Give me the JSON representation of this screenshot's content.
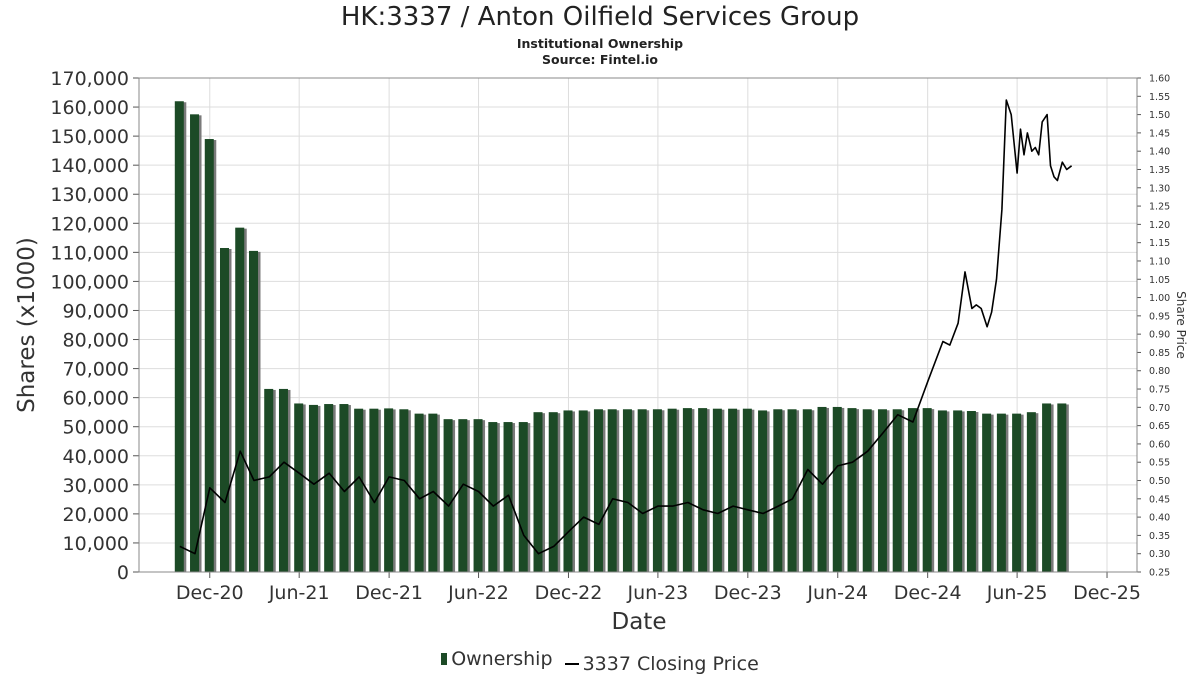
{
  "title": "HK:3337 / Anton Oilfield Services Group",
  "subtitle": "Institutional Ownership",
  "source": "Source: Fintel.io",
  "chart_data": {
    "type": "bar",
    "xlabel": "Date",
    "ylabel": "Shares (x1000)",
    "y2label": "Share Price",
    "ylim": [
      0,
      170000
    ],
    "y2lim": [
      0.25,
      1.6
    ],
    "grid": true,
    "legend": "bottom",
    "x_ticks": [
      "Dec-20",
      "Jun-21",
      "Dec-21",
      "Jun-22",
      "Dec-22",
      "Jun-23",
      "Dec-23",
      "Jun-24",
      "Dec-24",
      "Jun-25",
      "Dec-25"
    ],
    "y_ticks": [
      "0",
      "10,000",
      "20,000",
      "30,000",
      "40,000",
      "50,000",
      "60,000",
      "70,000",
      "80,000",
      "90,000",
      "100,000",
      "110,000",
      "120,000",
      "130,000",
      "140,000",
      "150,000",
      "160,000",
      "170,000"
    ],
    "y2_ticks": [
      "0.25",
      "0.30",
      "0.35",
      "0.40",
      "0.45",
      "0.50",
      "0.55",
      "0.60",
      "0.65",
      "0.70",
      "0.75",
      "0.80",
      "0.85",
      "0.90",
      "0.95",
      "1.00",
      "1.05",
      "1.10",
      "1.15",
      "1.20",
      "1.25",
      "1.30",
      "1.35",
      "1.40",
      "1.45",
      "1.50",
      "1.55",
      "1.60"
    ],
    "colors": {
      "bar": "#1c4a26",
      "bar_shadow": "#7a7a7a",
      "price_line": "#000000",
      "grid": "#dddddd"
    },
    "series": [
      {
        "name": "Ownership",
        "type": "bar",
        "x": [
          "2020-09-30",
          "2020-10-31",
          "2020-11-30",
          "2020-12-31",
          "2021-01-31",
          "2021-02-28",
          "2021-03-31",
          "2021-04-30",
          "2021-05-31",
          "2021-06-30",
          "2021-07-31",
          "2021-08-31",
          "2021-09-30",
          "2021-10-31",
          "2021-11-30",
          "2021-12-31",
          "2022-01-31",
          "2022-02-28",
          "2022-03-31",
          "2022-04-30",
          "2022-05-31",
          "2022-06-30",
          "2022-07-31",
          "2022-08-31",
          "2022-09-30",
          "2022-10-31",
          "2022-11-30",
          "2022-12-31",
          "2023-01-31",
          "2023-02-28",
          "2023-03-31",
          "2023-04-30",
          "2023-05-31",
          "2023-06-30",
          "2023-07-31",
          "2023-08-31",
          "2023-09-30",
          "2023-10-31",
          "2023-11-30",
          "2023-12-31",
          "2024-01-31",
          "2024-02-29",
          "2024-03-31",
          "2024-04-30",
          "2024-05-31",
          "2024-06-30",
          "2024-07-31",
          "2024-08-31",
          "2024-09-30",
          "2024-10-31",
          "2024-11-30",
          "2024-12-31",
          "2025-01-31",
          "2025-02-28",
          "2025-03-31",
          "2025-04-30",
          "2025-05-31",
          "2025-06-30",
          "2025-07-31",
          "2025-08-31"
        ],
        "values": [
          162000,
          157500,
          149000,
          111500,
          118500,
          110500,
          63000,
          63000,
          58000,
          57500,
          57800,
          57800,
          56200,
          56200,
          56300,
          56000,
          54500,
          54500,
          52600,
          52600,
          52600,
          51600,
          51600,
          51600,
          55000,
          55000,
          55600,
          55600,
          56000,
          56000,
          56000,
          56000,
          56000,
          56200,
          56400,
          56400,
          56200,
          56200,
          56200,
          55600,
          56000,
          56000,
          56000,
          56800,
          56800,
          56400,
          56000,
          56000,
          56000,
          56400,
          56400,
          55600,
          55600,
          55400,
          54500,
          54500,
          54500,
          55000,
          58000,
          58000
        ]
      },
      {
        "name": "3337 Closing Price",
        "type": "line",
        "x": [
          "2020-10-01",
          "2020-11-01",
          "2020-12-01",
          "2021-01-01",
          "2021-02-01",
          "2021-03-01",
          "2021-04-01",
          "2021-05-01",
          "2021-06-01",
          "2021-07-01",
          "2021-08-01",
          "2021-09-01",
          "2021-10-01",
          "2021-11-01",
          "2021-12-01",
          "2022-01-01",
          "2022-02-01",
          "2022-03-01",
          "2022-04-01",
          "2022-05-01",
          "2022-06-01",
          "2022-07-01",
          "2022-08-01",
          "2022-09-01",
          "2022-10-01",
          "2022-11-01",
          "2022-12-01",
          "2023-01-01",
          "2023-02-01",
          "2023-03-01",
          "2023-04-01",
          "2023-05-01",
          "2023-06-01",
          "2023-07-01",
          "2023-08-01",
          "2023-09-01",
          "2023-10-01",
          "2023-11-01",
          "2023-12-01",
          "2024-01-01",
          "2024-02-01",
          "2024-03-01",
          "2024-04-01",
          "2024-05-01",
          "2024-06-01",
          "2024-07-01",
          "2024-08-01",
          "2024-09-01",
          "2024-10-01",
          "2024-11-01",
          "2024-12-01",
          "2025-01-01",
          "2025-01-15",
          "2025-02-01",
          "2025-02-15",
          "2025-03-01",
          "2025-03-10",
          "2025-03-20",
          "2025-04-01",
          "2025-04-10",
          "2025-04-20",
          "2025-05-01",
          "2025-05-10",
          "2025-05-20",
          "2025-06-01",
          "2025-06-08",
          "2025-06-15",
          "2025-06-22",
          "2025-07-01",
          "2025-07-08",
          "2025-07-15",
          "2025-07-22",
          "2025-08-01",
          "2025-08-08",
          "2025-08-15",
          "2025-08-22",
          "2025-09-01",
          "2025-09-10",
          "2025-09-20"
        ],
        "values": [
          0.32,
          0.3,
          0.48,
          0.44,
          0.58,
          0.5,
          0.51,
          0.55,
          0.52,
          0.49,
          0.52,
          0.47,
          0.51,
          0.44,
          0.51,
          0.5,
          0.45,
          0.47,
          0.43,
          0.49,
          0.47,
          0.43,
          0.46,
          0.35,
          0.3,
          0.32,
          0.36,
          0.4,
          0.38,
          0.45,
          0.44,
          0.41,
          0.43,
          0.43,
          0.44,
          0.42,
          0.41,
          0.43,
          0.42,
          0.41,
          0.43,
          0.45,
          0.53,
          0.49,
          0.54,
          0.55,
          0.58,
          0.63,
          0.68,
          0.66,
          0.77,
          0.88,
          0.87,
          0.93,
          1.07,
          0.97,
          0.98,
          0.97,
          0.92,
          0.96,
          1.05,
          1.24,
          1.54,
          1.5,
          1.34,
          1.46,
          1.39,
          1.45,
          1.4,
          1.41,
          1.39,
          1.48,
          1.5,
          1.36,
          1.33,
          1.32,
          1.37,
          1.35,
          1.36
        ]
      }
    ]
  }
}
